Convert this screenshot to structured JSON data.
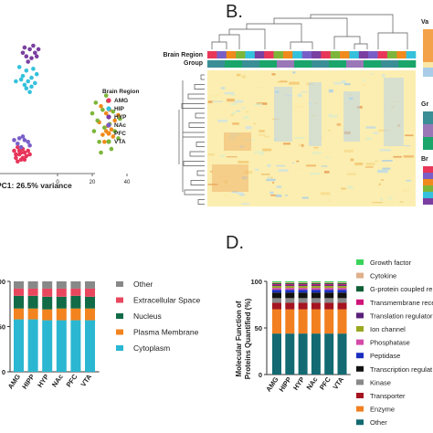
{
  "colors": {
    "regions": {
      "AMG": "#e8365a",
      "HIP": "#35c1dc",
      "HYP": "#7a3fa0",
      "NAc": "#7a5ec8",
      "PFC": "#f08a1c",
      "VTA": "#7db53a"
    },
    "loc": {
      "Other": "#888888",
      "Extracellular Space": "#e8475e",
      "Nucleus": "#126b47",
      "Plasma Membrane": "#f2831f",
      "Cytoplasm": "#2bb7d1"
    },
    "fn": {
      "Growth factor": "#3ad35a",
      "Cytokine": "#e0b08a",
      "G-protein coupled receptor": "#0f5e36",
      "Transmembrane receptor": "#d0137a",
      "Translation regulator": "#5a1f7a",
      "Ion channel": "#9aa81e",
      "Phosphatase": "#d44aa8",
      "Peptidase": "#1a2ec0",
      "Transcription regulator": "#111111",
      "Kinase": "#8a8a8a",
      "Transporter": "#a51420",
      "Enzyme": "#f28020",
      "Other": "#136a72"
    }
  },
  "panel_labels": {
    "b": "B.",
    "d": "D."
  },
  "scatter_legend_title": "Brain Region",
  "pc1_label": "PC1: 26.5% variance",
  "heatmap_row_labels": [
    "Brain Region",
    "Group"
  ],
  "heatmap_side_fragments": [
    "Va",
    "Gr",
    "Br"
  ],
  "fn_ylabel_line1": "Molecular Function of",
  "fn_ylabel_line2": "Proteins Quantified (%)",
  "chart_data": [
    {
      "type": "scatter",
      "xlabel": "PC1: 26.5% variance",
      "x_ticks": [
        "0",
        "20",
        "40"
      ],
      "legend_title": "Brain Region",
      "series": [
        {
          "name": "AMG",
          "points": [
            [
              -24,
              -21
            ],
            [
              -22,
              -19
            ],
            [
              -20,
              -23
            ],
            [
              -23,
              -17
            ],
            [
              -19,
              -20
            ],
            [
              -21,
              -24
            ],
            [
              -25,
              -19
            ],
            [
              -18,
              -22
            ],
            [
              -22,
              -21
            ],
            [
              -20,
              -18
            ],
            [
              -24,
              -23
            ],
            [
              -17,
              -19
            ],
            [
              -21,
              -20
            ],
            [
              -23,
              -25
            ],
            [
              -19,
              -24
            ],
            [
              -16,
              -21
            ]
          ]
        },
        {
          "name": "HIP",
          "points": [
            [
              -20,
              23
            ],
            [
              -18,
              26
            ],
            [
              -15,
              22
            ],
            [
              -22,
              28
            ],
            [
              -17,
              20
            ],
            [
              -12,
              24
            ],
            [
              -19,
              18
            ],
            [
              -14,
              27
            ],
            [
              -16,
              14
            ],
            [
              -21,
              21
            ],
            [
              -13,
              19
            ],
            [
              -18,
              16
            ],
            [
              -24,
              20
            ],
            [
              -15,
              17
            ]
          ]
        },
        {
          "name": "HYP",
          "points": [
            [
              -16,
              38
            ],
            [
              -13,
              36
            ],
            [
              -18,
              34
            ],
            [
              -11,
              38
            ],
            [
              -15,
              33
            ],
            [
              -20,
              36
            ],
            [
              -14,
              40
            ],
            [
              -17,
              31
            ],
            [
              -12,
              34
            ],
            [
              -19,
              39
            ]
          ]
        },
        {
          "name": "NAc",
          "points": [
            [
              -23,
              -15
            ],
            [
              -19,
              -13
            ],
            [
              -21,
              -17
            ],
            [
              -17,
              -14
            ],
            [
              -25,
              -13
            ],
            [
              -20,
              -11
            ],
            [
              -16,
              -16
            ],
            [
              -22,
              -12
            ]
          ]
        },
        {
          "name": "PFC",
          "points": [
            [
              24,
              -3
            ],
            [
              28,
              2
            ],
            [
              31,
              -7
            ],
            [
              26,
              -10
            ],
            [
              30,
              4
            ],
            [
              33,
              -2
            ],
            [
              27,
              -14
            ],
            [
              29,
              -5
            ],
            [
              35,
              1
            ],
            [
              25,
              6
            ],
            [
              32,
              -11
            ],
            [
              28,
              -8
            ]
          ]
        },
        {
          "name": "VTA",
          "points": [
            [
              22,
              8
            ],
            [
              26,
              4
            ],
            [
              30,
              -4
            ],
            [
              24,
              -14
            ],
            [
              33,
              -8
            ],
            [
              28,
              12
            ],
            [
              20,
              2
            ],
            [
              31,
              -18
            ],
            [
              27,
              -6
            ],
            [
              35,
              -12
            ],
            [
              23,
              -2
            ],
            [
              29,
              9
            ],
            [
              36,
              -1
            ],
            [
              25,
              -20
            ],
            [
              32,
              3
            ],
            [
              21,
              -8
            ]
          ]
        }
      ]
    },
    {
      "type": "heatmap",
      "row_labels": [
        "Brain Region",
        "Group"
      ]
    },
    {
      "type": "bar",
      "stacked": true,
      "categories": [
        "AMG",
        "HIPP",
        "HYP",
        "NAc",
        "PFC",
        "VTA"
      ],
      "y_ticks": [
        "0",
        "50",
        "100"
      ],
      "ylim": [
        0,
        100
      ],
      "series": [
        {
          "name": "Cytoplasm",
          "values": [
            58,
            58,
            57,
            57,
            57,
            57
          ]
        },
        {
          "name": "Plasma Membrane",
          "values": [
            12,
            12,
            12,
            13,
            13,
            13
          ]
        },
        {
          "name": "Nucleus",
          "values": [
            14,
            14,
            14,
            13,
            14,
            13
          ]
        },
        {
          "name": "Extracellular Space",
          "values": [
            8,
            8,
            9,
            9,
            8,
            9
          ]
        },
        {
          "name": "Other",
          "values": [
            8,
            8,
            8,
            8,
            8,
            8
          ]
        }
      ]
    },
    {
      "type": "bar",
      "stacked": true,
      "categories": [
        "AMG",
        "HIPP",
        "HYP",
        "NAc",
        "PFC",
        "VTA"
      ],
      "ylabel": "Molecular Function of Proteins Quantified (%)",
      "y_ticks": [
        "0",
        "50",
        "100"
      ],
      "ylim": [
        0,
        100
      ],
      "legend_labels": [
        "Growth factor",
        "Cytokine",
        "G-protein coupled re",
        "Transmembrane rece",
        "Translation regulator",
        "Ion channel",
        "Phosphatase",
        "Peptidase",
        "Transcription regulat",
        "Kinase",
        "Transporter",
        "Enzyme",
        "Other"
      ],
      "series": [
        {
          "name": "Other",
          "values": [
            44,
            44,
            44,
            44,
            44,
            44
          ]
        },
        {
          "name": "Enzyme",
          "values": [
            26,
            26,
            26,
            26,
            26,
            26
          ]
        },
        {
          "name": "Transporter",
          "values": [
            7,
            7,
            7,
            7,
            7,
            7
          ]
        },
        {
          "name": "Kinase",
          "values": [
            5,
            5,
            5,
            5,
            5,
            5
          ]
        },
        {
          "name": "Transcription regulator",
          "values": [
            6,
            6,
            6,
            6,
            6,
            6
          ]
        },
        {
          "name": "Peptidase",
          "values": [
            3,
            3,
            3,
            3,
            3,
            3
          ]
        },
        {
          "name": "Phosphatase",
          "values": [
            2,
            2,
            2,
            2,
            2,
            2
          ]
        },
        {
          "name": "Ion channel",
          "values": [
            2,
            2,
            2,
            2,
            2,
            2
          ]
        },
        {
          "name": "Translation regulator",
          "values": [
            1,
            1,
            1,
            1,
            1,
            1
          ]
        },
        {
          "name": "Transmembrane receptor",
          "values": [
            1,
            1,
            1,
            1,
            1,
            1
          ]
        },
        {
          "name": "G-protein coupled receptor",
          "values": [
            1,
            1,
            1,
            1,
            1,
            1
          ]
        },
        {
          "name": "Cytokine",
          "values": [
            1,
            1,
            1,
            1,
            1,
            1
          ]
        },
        {
          "name": "Growth factor",
          "values": [
            1,
            1,
            1,
            1,
            1,
            1
          ]
        }
      ]
    }
  ]
}
